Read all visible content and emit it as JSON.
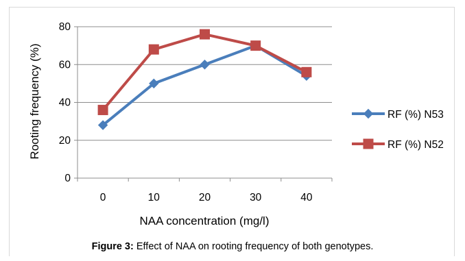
{
  "caption": {
    "label": "Figure 3:",
    "text": " Effect of NAA on rooting frequency of both genotypes."
  },
  "chart_data": {
    "type": "line",
    "x": [
      0,
      10,
      20,
      30,
      40
    ],
    "categories": [
      "0",
      "10",
      "20",
      "30",
      "40"
    ],
    "xlabel": "NAA concentration (mg/l)",
    "ylabel": "Rooting frequency (%)",
    "ylim": [
      0,
      80
    ],
    "yticks": [
      0,
      20,
      40,
      60,
      80
    ],
    "grid": true,
    "legend_position": "right",
    "series": [
      {
        "name": "RF (%) N53",
        "values": [
          28,
          50,
          60,
          70,
          54
        ],
        "color": "#4a7ebb",
        "marker": "diamond"
      },
      {
        "name": "RF (%) N52",
        "values": [
          36,
          68,
          76,
          70,
          56
        ],
        "color": "#be4b48",
        "marker": "square"
      }
    ]
  }
}
